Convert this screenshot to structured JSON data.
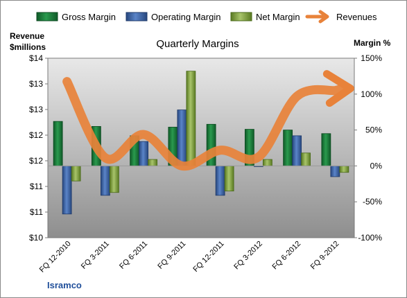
{
  "chart_data": {
    "type": "bar",
    "title": "Quarterly Margins",
    "source": "Isramco",
    "categories": [
      "FQ 12-2010",
      "FQ 3-2011",
      "FQ 6-2011",
      "FQ 9-2011",
      "FQ 12-2011",
      "FQ 3-2012",
      "FQ 6-2012",
      "FQ 9-2012"
    ],
    "series": [
      {
        "name": "Gross Margin",
        "axis": "right",
        "color": "#1a7a3a",
        "values": [
          62,
          55,
          42,
          54,
          58,
          51,
          50,
          45
        ]
      },
      {
        "name": "Operating Margin",
        "axis": "right",
        "color": "#3d64a8",
        "values": [
          -67,
          -41,
          34,
          78,
          -41,
          0,
          42,
          -15
        ]
      },
      {
        "name": "Net Margin",
        "axis": "right",
        "color": "#7a9a3a",
        "values": [
          -21,
          -37,
          9,
          132,
          -35,
          9,
          18,
          -9
        ]
      }
    ],
    "line_series": {
      "name": "Revenues",
      "axis": "left",
      "color": "#e8823a",
      "values": [
        13.48,
        11.78,
        12.3,
        11.6,
        11.95,
        11.8,
        13.15,
        13.28
      ]
    },
    "left_axis": {
      "title_line1": "Revenue",
      "title_line2": "$millions",
      "ylim": [
        10,
        14
      ],
      "ticks": [
        "$14",
        "$13",
        "$13",
        "$12",
        "$12",
        "$11",
        "$11",
        "$10"
      ]
    },
    "right_axis": {
      "title": "Margin %",
      "ylim": [
        -100,
        150
      ],
      "ticks": [
        "150%",
        "100%",
        "50%",
        "0%",
        "-50%",
        "-100%"
      ]
    },
    "legend": {
      "placement": "top",
      "items": [
        "Gross Margin",
        "Operating Margin",
        "Net Margin",
        "Revenues"
      ]
    },
    "grid": false,
    "background_gradient": [
      "#e8e8e8",
      "#b8b8b8",
      "#8e8e8e"
    ]
  }
}
